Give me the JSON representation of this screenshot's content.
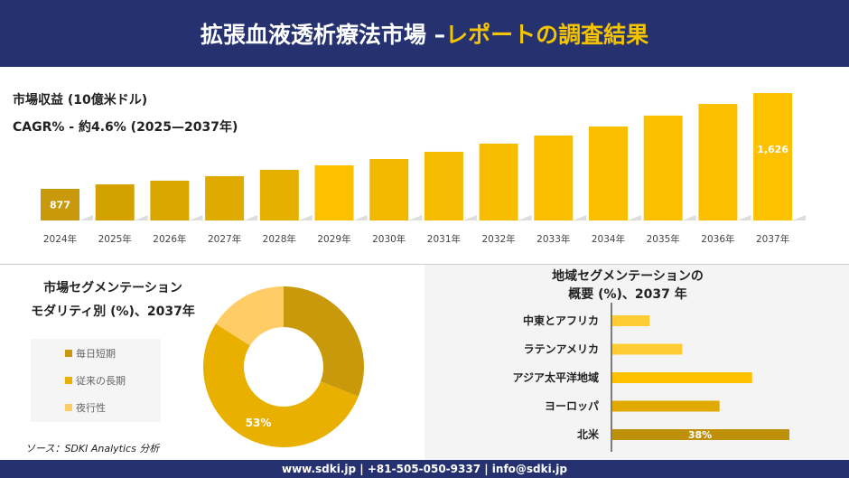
{
  "header": {
    "title_main": "拡張血液透析療法市場 –",
    "title_highlight": "レポートの調査結果"
  },
  "revenue": {
    "label": "市場収益 (10億米ドル)",
    "cagr": "CAGR% - 約4.6% (2025—2037年)"
  },
  "modality": {
    "title_line1": "市場セグメンテーション",
    "title_line2": "モダリティ別 (%)、2037年"
  },
  "region": {
    "title_line1": "地域セグメンテーションの",
    "title_line2": "概要 (%)、2037 年"
  },
  "source": "ソース：SDKI Analytics 分析",
  "footer": "www.sdki.jp | +81-505-050-9337 | info@sdki.jp",
  "colors": {
    "navy": "#263270",
    "accent": "#f5c400",
    "dark_gold": "#c8990a",
    "gold": "#e9b000",
    "light_gold": "#ffcc66"
  },
  "chart_data": [
    {
      "type": "bar",
      "title": "市場収益 (10億米ドル)",
      "categories": [
        "2024年",
        "2025年",
        "2026年",
        "2027年",
        "2028年",
        "2029年",
        "2030年",
        "2031年",
        "2032年",
        "2033年",
        "2034年",
        "2035年",
        "2036年",
        "2037年"
      ],
      "values": [
        877,
        912,
        941,
        976,
        1026,
        1061,
        1110,
        1167,
        1231,
        1294,
        1365,
        1450,
        1541,
        1626
      ],
      "data_labels": {
        "2024年": "877",
        "2037年": "1,626"
      },
      "grid": false
    },
    {
      "type": "pie",
      "title": "市場セグメンテーション モダリティ別 (%)、2037年",
      "slices": [
        {
          "name": "毎日短期",
          "value": 31,
          "color": "#c8990a"
        },
        {
          "name": "従来の長期",
          "value": 53,
          "color": "#e9b000",
          "label": "53%"
        },
        {
          "name": "夜行性",
          "value": 16,
          "color": "#ffcc66"
        }
      ],
      "legend": "left"
    },
    {
      "type": "bar",
      "orientation": "horizontal",
      "title": "地域セグメンテーションの概要 (%)、2037 年",
      "categories": [
        "中東とアフリカ",
        "ラテンアメリカ",
        "アジア太平洋地域",
        "ヨーロッパ",
        "北米"
      ],
      "values": [
        8,
        15,
        30,
        23,
        38
      ],
      "data_labels": {
        "北米": "38%"
      },
      "colors": [
        "#ffcc33",
        "#ffcc33",
        "#ffc000",
        "#e0aa00",
        "#bf900a"
      ]
    }
  ]
}
